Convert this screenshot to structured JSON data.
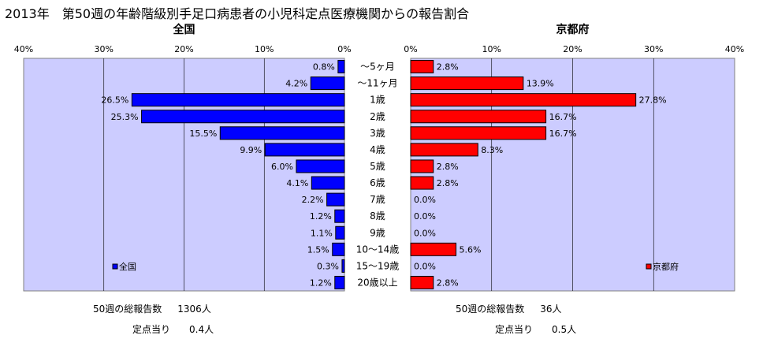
{
  "title": "2013年　第50週の年齢階級別手足口病患者の小児科定点医療機関からの報告割合",
  "chart_data": {
    "type": "bar",
    "orientation": "horizontal",
    "categories": [
      "～5ヶ月",
      "～11ヶ月",
      "1歳",
      "2歳",
      "3歳",
      "4歳",
      "5歳",
      "6歳",
      "7歳",
      "8歳",
      "9歳",
      "10～14歳",
      "15～19歳",
      "20歳以上"
    ],
    "panels": [
      {
        "title": "全国",
        "legend": "全国",
        "legend_position": "bottom-left",
        "direction": "right-to-left",
        "color": "#0000ff",
        "xlim": [
          0,
          40
        ],
        "ticks": [
          "40%",
          "30%",
          "20%",
          "10%",
          "0%"
        ],
        "values": [
          0.8,
          4.2,
          26.5,
          25.3,
          15.5,
          9.9,
          6.0,
          4.1,
          2.2,
          1.2,
          1.1,
          1.5,
          0.3,
          1.2
        ],
        "labels": [
          "0.8%",
          "4.2%",
          "26.5%",
          "25.3%",
          "15.5%",
          "9.9%",
          "6.0%",
          "4.1%",
          "2.2%",
          "1.2%",
          "1.1%",
          "1.5%",
          "0.3%",
          "1.2%"
        ]
      },
      {
        "title": "京都府",
        "legend": "京都府",
        "legend_position": "bottom-right",
        "direction": "left-to-right",
        "color": "#ff0000",
        "xlim": [
          0,
          40
        ],
        "ticks": [
          "0%",
          "10%",
          "20%",
          "30%",
          "40%"
        ],
        "values": [
          2.8,
          13.9,
          27.8,
          16.7,
          16.7,
          8.3,
          2.8,
          2.8,
          0.0,
          0.0,
          0.0,
          5.6,
          0.0,
          2.8
        ],
        "labels": [
          "2.8%",
          "13.9%",
          "27.8%",
          "16.7%",
          "16.7%",
          "8.3%",
          "2.8%",
          "2.8%",
          "0.0%",
          "0.0%",
          "0.0%",
          "5.6%",
          "0.0%",
          "2.8%"
        ]
      }
    ],
    "grid": true,
    "plot_background": "#ccccff"
  },
  "summary": {
    "left": {
      "reports_label": "50週の総報告数",
      "reports_value": "1306人",
      "per_site_label": "定点当り",
      "per_site_value": "0.4人"
    },
    "right": {
      "reports_label": "50週の総報告数",
      "reports_value": "36人",
      "per_site_label": "定点当り",
      "per_site_value": "0.5人"
    }
  }
}
